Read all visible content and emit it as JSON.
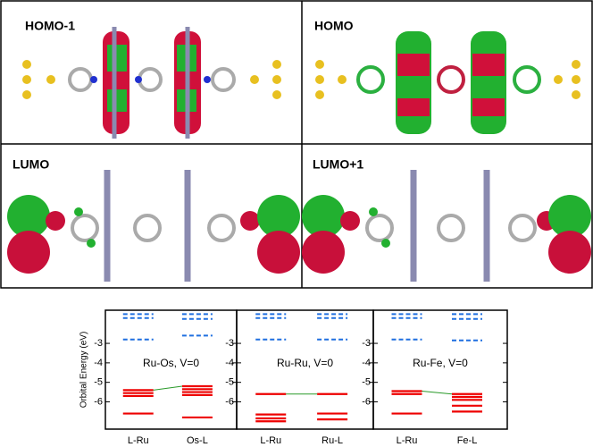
{
  "panels": [
    {
      "label": "HOMO-1"
    },
    {
      "label": "HOMO"
    },
    {
      "label": "LUMO"
    },
    {
      "label": "LUMO+1"
    }
  ],
  "chart_data": [
    {
      "type": "levels",
      "title": "Ru-Os, V=0",
      "y_label": "Orbital Energy (eV)",
      "categories": [
        "L-Ru",
        "Os-L"
      ],
      "occupied": [
        [
          -5.4,
          -5.55,
          -5.7,
          -6.6
        ],
        [
          -5.2,
          -5.35,
          -5.5,
          -5.65,
          -6.8
        ]
      ],
      "unoccupied": [
        [
          -1.5,
          -1.7,
          -2.8
        ],
        [
          -1.5,
          -1.75,
          -2.6
        ]
      ],
      "occupied_color": "#ee0000",
      "unoccupied_color": "#1f6fe0",
      "connector_color": "#2a9a2a",
      "ylim": [
        -7.4,
        -1.3
      ],
      "yticks": [
        -3,
        -4,
        -5,
        -6
      ]
    },
    {
      "type": "levels",
      "title": "Ru-Ru, V=0",
      "categories": [
        "L-Ru",
        "Ru-L"
      ],
      "occupied": [
        [
          -5.6,
          -6.65,
          -6.85,
          -7.0
        ],
        [
          -5.6,
          -6.6,
          -6.9
        ]
      ],
      "unoccupied": [
        [
          -1.5,
          -1.7,
          -2.8
        ],
        [
          -1.5,
          -1.7,
          -2.8
        ]
      ],
      "occupied_color": "#ee0000",
      "unoccupied_color": "#1f6fe0",
      "connector_color": "#2a9a2a",
      "ylim": [
        -7.4,
        -1.3
      ],
      "yticks": [
        -3,
        -4,
        -5,
        -6
      ]
    },
    {
      "type": "levels",
      "title": "Ru-Fe, V=0",
      "categories": [
        "L-Ru",
        "Fe-L"
      ],
      "occupied": [
        [
          -5.45,
          -5.6,
          -6.6
        ],
        [
          -5.6,
          -5.75,
          -5.9,
          -6.2,
          -6.5
        ]
      ],
      "unoccupied": [
        [
          -1.5,
          -1.7,
          -2.8
        ],
        [
          -1.5,
          -1.75,
          -2.85
        ]
      ],
      "occupied_color": "#ee0000",
      "unoccupied_color": "#1f6fe0",
      "connector_color": "#2a9a2a",
      "ylim": [
        -7.4,
        -1.3
      ],
      "yticks": [
        -3,
        -4,
        -5,
        -6
      ]
    }
  ]
}
